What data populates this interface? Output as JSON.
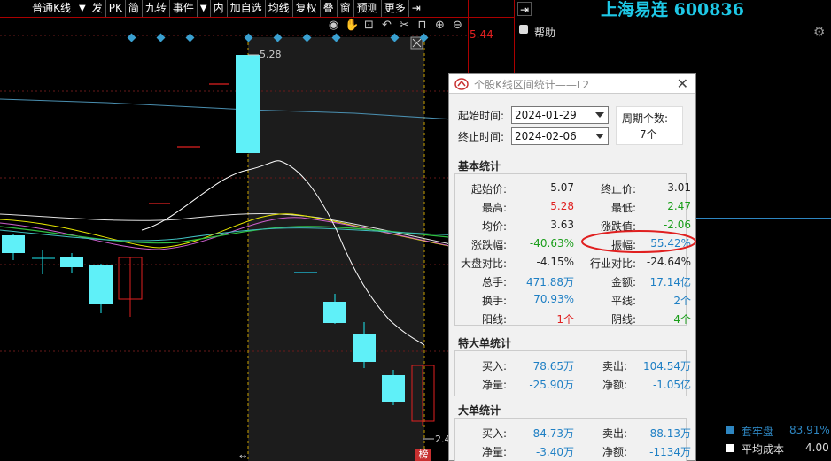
{
  "toolbar": {
    "kline_type": "普通K线",
    "items": [
      "发",
      "PK",
      "简",
      "九转",
      "事件",
      "内",
      "加自选",
      "均线",
      "复权",
      "叠",
      "窗",
      "预测",
      "更多"
    ]
  },
  "chart": {
    "price_top_right": "5.44",
    "high_marker": "5.28",
    "low_marker": "2.4",
    "bottom_tag": "榜"
  },
  "right_panel": {
    "stock_title": "上海易连 600836",
    "help_label": "帮助",
    "legend": [
      {
        "label": "套牢盘",
        "value": "83.91%",
        "color": "#2e86c1"
      },
      {
        "label": "平均成本",
        "value": "4.00",
        "color": "#ffffff"
      }
    ]
  },
  "dialog": {
    "title": "个股K线区间统计——L2",
    "start_label": "起始时间:",
    "start_value": "2024-01-29",
    "end_label": "终止时间:",
    "end_value": "2024-02-06",
    "period_label": "周期个数:",
    "period_value": "7个",
    "basic_title": "基本统计",
    "basic": {
      "start_price_k": "起始价:",
      "start_price_v": "5.07",
      "end_price_k": "终止价:",
      "end_price_v": "3.01",
      "high_k": "最高:",
      "high_v": "5.28",
      "low_k": "最低:",
      "low_v": "2.47",
      "avg_k": "均价:",
      "avg_v": "3.63",
      "chg_val_k": "涨跌值:",
      "chg_val_v": "-2.06",
      "chg_pct_k": "涨跌幅:",
      "chg_pct_v": "-40.63%",
      "amp_k": "振幅:",
      "amp_v": "55.42%",
      "mkt_k": "大盘对比:",
      "mkt_v": "-4.15%",
      "ind_k": "行业对比:",
      "ind_v": "-24.64%",
      "vol_k": "总手:",
      "vol_v": "471.88万",
      "amt_k": "金额:",
      "amt_v": "17.14亿",
      "turn_k": "换手:",
      "turn_v": "70.93%",
      "flat_k": "平线:",
      "flat_v": "2个",
      "up_k": "阳线:",
      "up_v": "1个",
      "down_k": "阴线:",
      "down_v": "4个"
    },
    "xl_title": "特大单统计",
    "xl": {
      "buy_k": "买入:",
      "buy_v": "78.65万",
      "sell_k": "卖出:",
      "sell_v": "104.54万",
      "net_k": "净量:",
      "net_v": "-25.90万",
      "neta_k": "净额:",
      "neta_v": "-1.05亿"
    },
    "l_title": "大单统计",
    "l": {
      "buy_k": "买入:",
      "buy_v": "84.73万",
      "sell_k": "卖出:",
      "sell_v": "88.13万",
      "net_k": "净量:",
      "net_v": "-3.40万",
      "neta_k": "净额:",
      "neta_v": "-1134万"
    }
  }
}
